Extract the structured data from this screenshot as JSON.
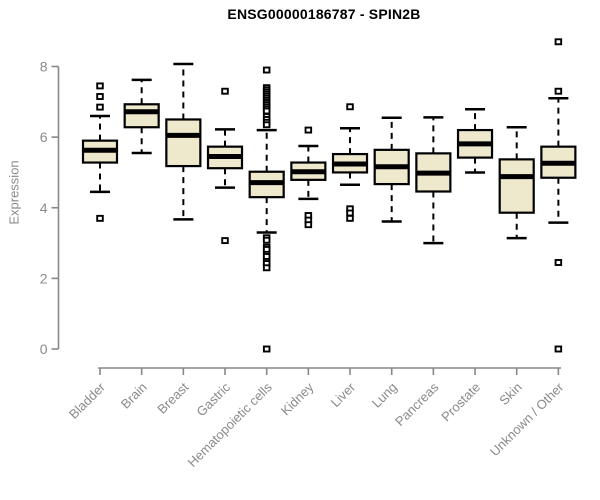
{
  "header": {
    "title": "ENSG00000186787 - SPIN2B"
  },
  "chart_data": {
    "type": "boxplot",
    "title": "ENSG00000186787 - SPIN2B",
    "xlabel": "",
    "ylabel": "Expression",
    "ylim": [
      0,
      8.8
    ],
    "yticks": [
      0,
      2,
      4,
      6,
      8
    ],
    "grid": false,
    "legend": "none",
    "colors": {
      "box_fill": "#EEE8CD",
      "box_stroke": "#000000",
      "median": "#000000",
      "axis": "#888888",
      "tick_text": "#8a8a8a",
      "title_text": "#000000",
      "background": "#ffffff"
    },
    "categories": [
      "Bladder",
      "Brain",
      "Breast",
      "Gastric",
      "Hematopoietic cells",
      "Kidney",
      "Liver",
      "Lung",
      "Pancreas",
      "Prostate",
      "Skin",
      "Unknown / Other"
    ],
    "series": [
      {
        "label": "Bladder",
        "whisker_low": 4.45,
        "q1": 5.28,
        "median": 5.63,
        "q3": 5.9,
        "whisker_high": 6.6,
        "outliers": [
          7.45,
          7.15,
          6.85,
          3.7
        ]
      },
      {
        "label": "Brain",
        "whisker_low": 5.55,
        "q1": 6.28,
        "median": 6.72,
        "q3": 6.93,
        "whisker_high": 7.62,
        "outliers": []
      },
      {
        "label": "Breast",
        "whisker_low": 3.67,
        "q1": 5.18,
        "median": 6.05,
        "q3": 6.5,
        "whisker_high": 8.07,
        "outliers": []
      },
      {
        "label": "Gastric",
        "whisker_low": 4.57,
        "q1": 5.12,
        "median": 5.45,
        "q3": 5.73,
        "whisker_high": 6.22,
        "outliers": [
          7.3,
          3.07
        ]
      },
      {
        "label": "Hematopoietic cells",
        "whisker_low": 3.3,
        "q1": 4.3,
        "median": 4.71,
        "q3": 5.02,
        "whisker_high": 6.2,
        "outliers": [
          7.9,
          7.4,
          7.34,
          7.28,
          7.22,
          7.16,
          7.1,
          7.04,
          6.98,
          6.92,
          6.86,
          6.8,
          6.74,
          6.58,
          6.5,
          6.42,
          6.35,
          3.15,
          3.08,
          2.88,
          2.82,
          2.68,
          2.62,
          2.48,
          2.42,
          2.3,
          0.0
        ]
      },
      {
        "label": "Kidney",
        "whisker_low": 4.25,
        "q1": 4.79,
        "median": 5.02,
        "q3": 5.28,
        "whisker_high": 5.75,
        "outliers": [
          6.2,
          3.78,
          3.65,
          3.52
        ]
      },
      {
        "label": "Liver",
        "whisker_low": 4.65,
        "q1": 5.0,
        "median": 5.24,
        "q3": 5.52,
        "whisker_high": 6.25,
        "outliers": [
          6.86,
          3.97,
          3.85,
          3.7
        ]
      },
      {
        "label": "Lung",
        "whisker_low": 3.61,
        "q1": 4.67,
        "median": 5.16,
        "q3": 5.64,
        "whisker_high": 6.55,
        "outliers": []
      },
      {
        "label": "Pancreas",
        "whisker_low": 3.0,
        "q1": 4.46,
        "median": 4.98,
        "q3": 5.54,
        "whisker_high": 6.56,
        "outliers": []
      },
      {
        "label": "Prostate",
        "whisker_low": 5.0,
        "q1": 5.42,
        "median": 5.81,
        "q3": 6.2,
        "whisker_high": 6.79,
        "outliers": []
      },
      {
        "label": "Skin",
        "whisker_low": 3.14,
        "q1": 3.86,
        "median": 4.88,
        "q3": 5.37,
        "whisker_high": 6.28,
        "outliers": []
      },
      {
        "label": "Unknown / Other",
        "whisker_low": 3.58,
        "q1": 4.85,
        "median": 5.26,
        "q3": 5.73,
        "whisker_high": 7.1,
        "outliers": [
          8.7,
          7.3,
          2.45,
          0.0
        ]
      }
    ]
  }
}
